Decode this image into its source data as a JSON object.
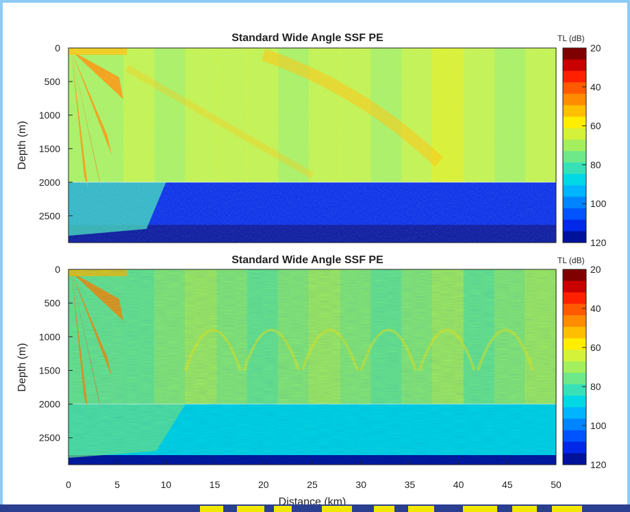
{
  "palette": [
    "#800000",
    "#c80000",
    "#ff2000",
    "#ff5a00",
    "#ff8c00",
    "#ffbf00",
    "#ffee00",
    "#d4f23a",
    "#a4ef5e",
    "#6ee98a",
    "#38e0b8",
    "#00d8e6",
    "#00b4ff",
    "#0084ff",
    "#0054ff",
    "#0028e6",
    "#00119a"
  ],
  "chart_data": [
    {
      "type": "heatmap",
      "title": "Standard Wide Angle SSF PE",
      "xlabel": "",
      "ylabel": "Depth (m)",
      "xlim": [
        0,
        50
      ],
      "ylim": [
        2900,
        0
      ],
      "yticks": [
        0,
        500,
        1000,
        1500,
        2000,
        2500
      ],
      "colorbar": {
        "label": "TL (dB)",
        "ticks": [
          20,
          40,
          60,
          80,
          100,
          120
        ],
        "range": [
          20,
          120
        ]
      },
      "seabed_depth": 2000,
      "description_values": {
        "water_column_tl": 65,
        "near_source_tl": 40,
        "sediment_tl": 110
      },
      "variant": 0
    },
    {
      "type": "heatmap",
      "title": "Standard Wide Angle SSF PE",
      "xlabel": "Distance (km)",
      "ylabel": "Depth (m)",
      "xlim": [
        0,
        50
      ],
      "ylim": [
        2900,
        0
      ],
      "xticks": [
        0,
        5,
        10,
        15,
        20,
        25,
        30,
        35,
        40,
        45,
        50
      ],
      "yticks": [
        0,
        500,
        1000,
        1500,
        2000,
        2500
      ],
      "colorbar": {
        "label": "TL (dB)",
        "ticks": [
          20,
          40,
          60,
          80,
          100,
          120
        ],
        "range": [
          20,
          120
        ]
      },
      "seabed_depth": 2000,
      "description_values": {
        "water_column_tl": 70,
        "near_source_tl": 40,
        "sediment_tl": 88
      },
      "variant": 1
    }
  ]
}
